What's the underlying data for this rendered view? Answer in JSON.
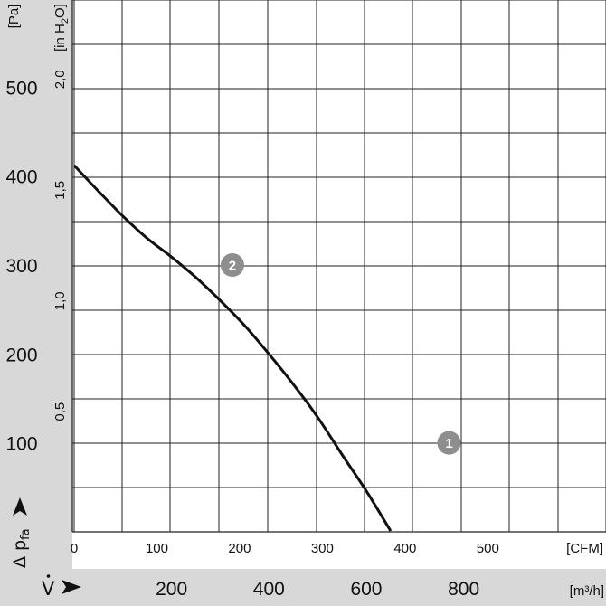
{
  "chart_data": {
    "type": "line",
    "series": [
      {
        "points": [
          {
            "x": 0,
            "y": 412
          },
          {
            "x": 50,
            "y": 383
          },
          {
            "x": 100,
            "y": 355
          },
          {
            "x": 150,
            "y": 330
          },
          {
            "x": 200,
            "y": 309
          },
          {
            "x": 250,
            "y": 286
          },
          {
            "x": 300,
            "y": 260
          },
          {
            "x": 350,
            "y": 232
          },
          {
            "x": 400,
            "y": 200
          },
          {
            "x": 450,
            "y": 166
          },
          {
            "x": 500,
            "y": 129
          },
          {
            "x": 550,
            "y": 87
          },
          {
            "x": 600,
            "y": 46
          },
          {
            "x": 650,
            "y": 1
          }
        ]
      }
    ],
    "markers": [
      {
        "label": "1",
        "x": 770,
        "y": 100
      },
      {
        "label": "2",
        "x": 325,
        "y": 300
      }
    ],
    "axes": {
      "y_pa": {
        "unit": "[Pa]",
        "min": 0,
        "max": 600,
        "ticks": [
          "100",
          "200",
          "300",
          "400",
          "500"
        ],
        "tick_values": [
          100,
          200,
          300,
          400,
          500
        ],
        "symbol": "Δ p",
        "symbol_sub": "fa"
      },
      "y_inh2o": {
        "unit_prefix": "[in H",
        "unit_sub": "2",
        "unit_suffix": "O]",
        "ticks": [
          "0,5",
          "1,0",
          "1,5",
          "2,0"
        ],
        "tick_values_pa": [
          124.5,
          249,
          373.5,
          498
        ]
      },
      "x_m3h": {
        "unit": "[m³/h]",
        "symbol": "V",
        "min": 0,
        "max": 1000,
        "ticks": [
          "200",
          "400",
          "600",
          "800"
        ],
        "tick_values": [
          200,
          400,
          600,
          800
        ]
      },
      "x_cfm": {
        "unit": "[CFM]",
        "ticks": [
          "0",
          "100",
          "200",
          "300",
          "400",
          "500"
        ],
        "tick_values_m3h": [
          0,
          169.9,
          339.8,
          509.7,
          679.6,
          849.5
        ]
      }
    },
    "grid": true
  }
}
